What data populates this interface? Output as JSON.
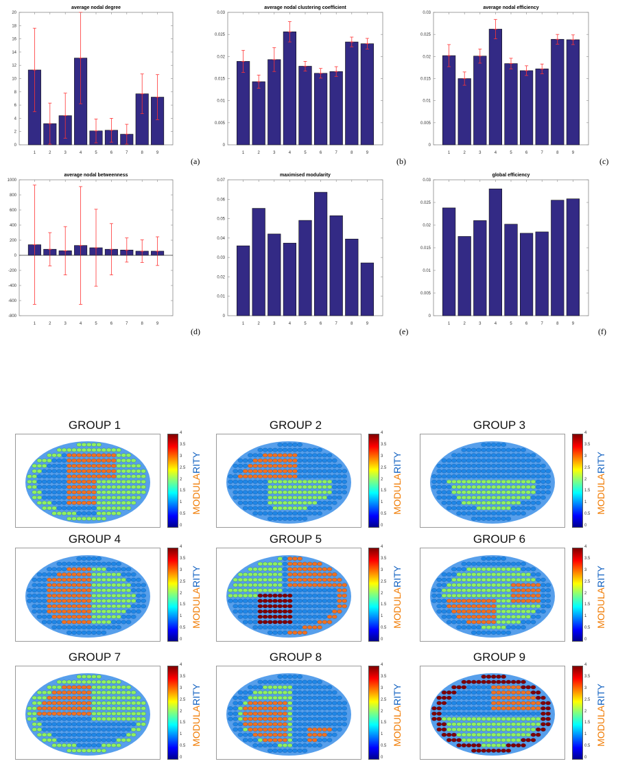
{
  "chart_data": [
    {
      "id": "a",
      "type": "bar",
      "title": "average nodal degree",
      "caption": "(a)",
      "categories": [
        "1",
        "2",
        "3",
        "4",
        "5",
        "6",
        "7",
        "8",
        "9"
      ],
      "values": [
        11.3,
        3.2,
        4.4,
        13.1,
        2.1,
        2.2,
        1.6,
        7.7,
        7.2
      ],
      "errors": [
        6.3,
        3.1,
        3.4,
        6.9,
        1.8,
        1.8,
        1.5,
        3.0,
        3.4
      ],
      "ylim": [
        0,
        20
      ],
      "yticks": [
        "0",
        "2",
        "4",
        "6",
        "8",
        "10",
        "12",
        "14",
        "16",
        "18",
        "20"
      ],
      "xlabel": "",
      "ylabel": ""
    },
    {
      "id": "b",
      "type": "bar",
      "title": "average nodal clustering coefficient",
      "caption": "(b)",
      "categories": [
        "1",
        "2",
        "3",
        "4",
        "5",
        "6",
        "7",
        "8",
        "9"
      ],
      "values": [
        0.0189,
        0.0143,
        0.0193,
        0.0256,
        0.0178,
        0.0162,
        0.0166,
        0.0233,
        0.0229
      ],
      "errors": [
        0.0025,
        0.0015,
        0.0027,
        0.0023,
        0.0011,
        0.0011,
        0.0011,
        0.0011,
        0.0012
      ],
      "ylim": [
        0,
        0.03
      ],
      "yticks": [
        "0",
        "0.005",
        "0.01",
        "0.015",
        "0.02",
        "0.025",
        "0.03"
      ],
      "xlabel": "",
      "ylabel": ""
    },
    {
      "id": "c",
      "type": "bar",
      "title": "average nodal efficiency",
      "caption": "(c)",
      "categories": [
        "1",
        "2",
        "3",
        "4",
        "5",
        "6",
        "7",
        "8",
        "9"
      ],
      "values": [
        0.0202,
        0.015,
        0.0201,
        0.0262,
        0.0184,
        0.0168,
        0.0172,
        0.0239,
        0.0238
      ],
      "errors": [
        0.0025,
        0.0015,
        0.0016,
        0.0022,
        0.0012,
        0.0011,
        0.0011,
        0.0011,
        0.0011
      ],
      "ylim": [
        0,
        0.03
      ],
      "yticks": [
        "0",
        "0.005",
        "0.01",
        "0.015",
        "0.02",
        "0.025",
        "0.03"
      ],
      "xlabel": "",
      "ylabel": ""
    },
    {
      "id": "d",
      "type": "bar",
      "title": "average nodal betweenness",
      "caption": "(d)",
      "categories": [
        "1",
        "2",
        "3",
        "4",
        "5",
        "6",
        "7",
        "8",
        "9"
      ],
      "values": [
        140,
        80,
        60,
        130,
        100,
        80,
        70,
        55,
        55
      ],
      "errors": [
        790,
        220,
        320,
        780,
        510,
        340,
        160,
        150,
        190
      ],
      "ylim": [
        -800,
        1000
      ],
      "yticks": [
        "-800",
        "-600",
        "-400",
        "-200",
        "0",
        "200",
        "400",
        "600",
        "800",
        "1000"
      ],
      "xlabel": "",
      "ylabel": ""
    },
    {
      "id": "e",
      "type": "bar",
      "title": "maximised modularity",
      "caption": "(e)",
      "categories": [
        "1",
        "2",
        "3",
        "4",
        "5",
        "6",
        "7",
        "8",
        "9"
      ],
      "values": [
        0.036,
        0.0553,
        0.0421,
        0.0374,
        0.0491,
        0.0636,
        0.0515,
        0.0395,
        0.0272
      ],
      "ylim": [
        0,
        0.07
      ],
      "yticks": [
        "0",
        "0.01",
        "0.02",
        "0.03",
        "0.04",
        "0.05",
        "0.06",
        "0.07"
      ],
      "xlabel": "",
      "ylabel": ""
    },
    {
      "id": "f",
      "type": "bar",
      "title": "global efficiency",
      "caption": "(f)",
      "categories": [
        "1",
        "2",
        "3",
        "4",
        "5",
        "6",
        "7",
        "8",
        "9"
      ],
      "values": [
        0.0238,
        0.0175,
        0.021,
        0.028,
        0.0202,
        0.0182,
        0.0185,
        0.0255,
        0.0258
      ],
      "ylim": [
        0,
        0.03
      ],
      "yticks": [
        "0",
        "0.005",
        "0.01",
        "0.015",
        "0.02",
        "0.025",
        "0.03"
      ],
      "xlabel": "",
      "ylabel": ""
    }
  ],
  "colors": {
    "bar": "#332a85",
    "error": "#ff3333",
    "node_blue": "#1f86e6",
    "node_green": "#90f060",
    "node_orange": "#f07020",
    "node_darkred": "#800000"
  },
  "groups": [
    {
      "title": "GROUP 1"
    },
    {
      "title": "GROUP 2"
    },
    {
      "title": "GROUP 3"
    },
    {
      "title": "GROUP 4"
    },
    {
      "title": "GROUP 5"
    },
    {
      "title": "GROUP 6"
    },
    {
      "title": "GROUP 7"
    },
    {
      "title": "GROUP 8"
    },
    {
      "title": "GROUP 9"
    }
  ],
  "colorbar": {
    "ticks": [
      "0",
      "0.5",
      "1",
      "1.5",
      "2",
      "2.5",
      "3",
      "3.5",
      "4"
    ],
    "label_a": "MODULA",
    "label_b": "RITY"
  }
}
